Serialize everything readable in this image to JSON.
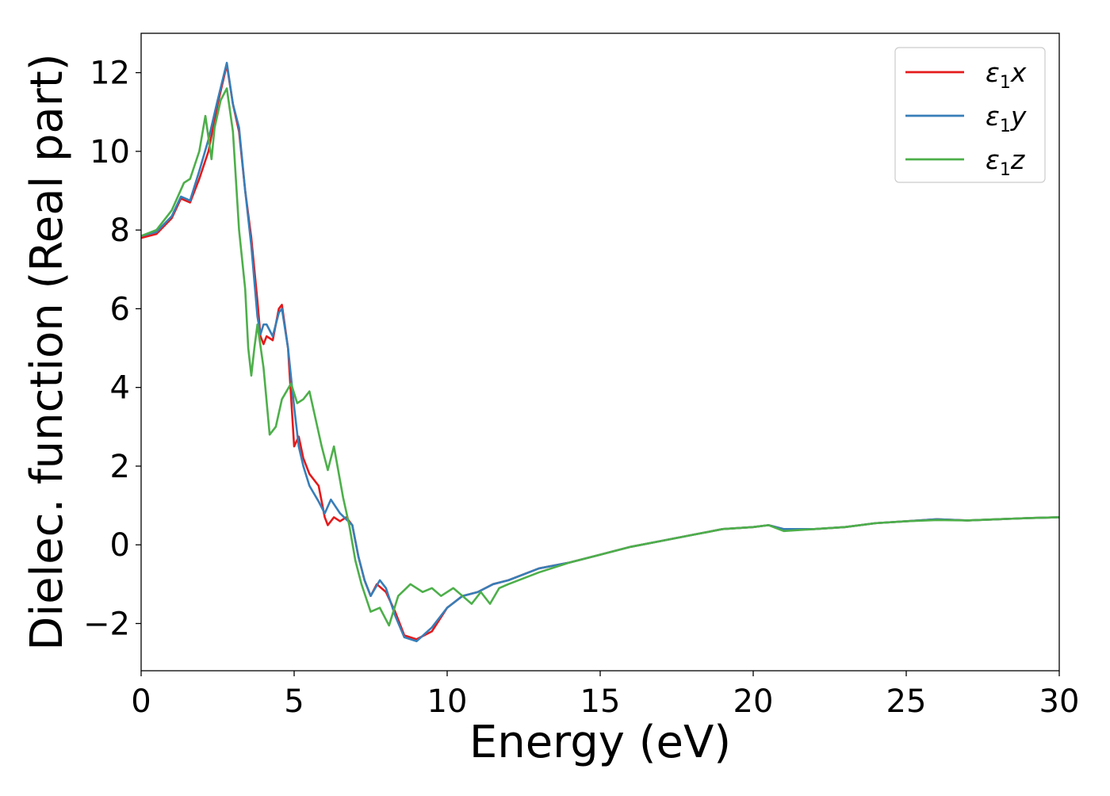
{
  "chart_data": {
    "type": "line",
    "title": "",
    "xlabel": "Energy (eV)",
    "ylabel": "Dielec. function (Real part)",
    "xlim": [
      0,
      30
    ],
    "ylim": [
      -3.2,
      13.0
    ],
    "x_ticks": [
      0,
      5,
      10,
      15,
      20,
      25,
      30
    ],
    "x_tick_labels": [
      "0",
      "5",
      "10",
      "15",
      "20",
      "25",
      "30"
    ],
    "y_ticks": [
      -2,
      0,
      2,
      4,
      6,
      8,
      10,
      12
    ],
    "y_tick_labels": [
      "−2",
      "0",
      "2",
      "4",
      "6",
      "8",
      "10",
      "12"
    ],
    "grid": false,
    "legend_position": "top-right",
    "series": [
      {
        "name": "ε₁x",
        "legend_base": "ε",
        "legend_sub": "1",
        "legend_var": "x",
        "color": "#e41a1c",
        "points": [
          [
            0,
            7.8
          ],
          [
            0.5,
            7.9
          ],
          [
            1.0,
            8.3
          ],
          [
            1.3,
            8.8
          ],
          [
            1.6,
            8.7
          ],
          [
            1.9,
            9.3
          ],
          [
            2.2,
            10.0
          ],
          [
            2.5,
            11.2
          ],
          [
            2.8,
            12.2
          ],
          [
            3.0,
            11.2
          ],
          [
            3.2,
            10.5
          ],
          [
            3.4,
            9.0
          ],
          [
            3.6,
            7.8
          ],
          [
            3.8,
            6.2
          ],
          [
            3.9,
            5.3
          ],
          [
            4.0,
            5.1
          ],
          [
            4.1,
            5.3
          ],
          [
            4.3,
            5.2
          ],
          [
            4.5,
            6.0
          ],
          [
            4.6,
            6.1
          ],
          [
            4.8,
            5.0
          ],
          [
            5.0,
            2.5
          ],
          [
            5.15,
            2.75
          ],
          [
            5.3,
            2.2
          ],
          [
            5.5,
            1.8
          ],
          [
            5.8,
            1.5
          ],
          [
            6.0,
            0.7
          ],
          [
            6.1,
            0.5
          ],
          [
            6.3,
            0.7
          ],
          [
            6.5,
            0.6
          ],
          [
            6.7,
            0.7
          ],
          [
            6.9,
            0.5
          ],
          [
            7.1,
            -0.3
          ],
          [
            7.3,
            -0.9
          ],
          [
            7.5,
            -1.3
          ],
          [
            7.7,
            -1.0
          ],
          [
            8.0,
            -1.2
          ],
          [
            8.3,
            -1.7
          ],
          [
            8.6,
            -2.3
          ],
          [
            9.0,
            -2.4
          ],
          [
            9.5,
            -2.2
          ],
          [
            10.0,
            -1.6
          ],
          [
            10.5,
            -1.3
          ],
          [
            11.0,
            -1.2
          ],
          [
            11.5,
            -1.0
          ],
          [
            12.0,
            -0.9
          ],
          [
            13.0,
            -0.6
          ],
          [
            14.0,
            -0.45
          ],
          [
            15.0,
            -0.25
          ],
          [
            16.0,
            -0.05
          ],
          [
            17.0,
            0.1
          ],
          [
            18.0,
            0.25
          ],
          [
            19.0,
            0.4
          ],
          [
            20.0,
            0.45
          ],
          [
            20.5,
            0.5
          ],
          [
            21.0,
            0.4
          ],
          [
            22.0,
            0.4
          ],
          [
            23.0,
            0.45
          ],
          [
            24.0,
            0.55
          ],
          [
            25.0,
            0.6
          ],
          [
            26.0,
            0.65
          ],
          [
            27.0,
            0.62
          ],
          [
            28.0,
            0.65
          ],
          [
            29.0,
            0.68
          ],
          [
            30.0,
            0.7
          ]
        ]
      },
      {
        "name": "ε₁y",
        "legend_base": "ε",
        "legend_sub": "1",
        "legend_var": "y",
        "color": "#377eb8",
        "points": [
          [
            0,
            7.85
          ],
          [
            0.5,
            7.95
          ],
          [
            1.0,
            8.35
          ],
          [
            1.3,
            8.85
          ],
          [
            1.6,
            8.75
          ],
          [
            1.9,
            9.5
          ],
          [
            2.2,
            10.3
          ],
          [
            2.5,
            11.3
          ],
          [
            2.8,
            12.25
          ],
          [
            3.0,
            11.2
          ],
          [
            3.2,
            10.6
          ],
          [
            3.4,
            9.0
          ],
          [
            3.6,
            7.6
          ],
          [
            3.8,
            5.8
          ],
          [
            3.9,
            5.35
          ],
          [
            4.0,
            5.6
          ],
          [
            4.1,
            5.6
          ],
          [
            4.3,
            5.3
          ],
          [
            4.5,
            5.9
          ],
          [
            4.6,
            6.0
          ],
          [
            4.8,
            5.0
          ],
          [
            5.0,
            3.5
          ],
          [
            5.15,
            2.5
          ],
          [
            5.3,
            2.0
          ],
          [
            5.5,
            1.5
          ],
          [
            5.8,
            1.1
          ],
          [
            6.0,
            0.8
          ],
          [
            6.2,
            1.15
          ],
          [
            6.5,
            0.8
          ],
          [
            6.7,
            0.65
          ],
          [
            6.9,
            0.5
          ],
          [
            7.1,
            -0.3
          ],
          [
            7.3,
            -0.9
          ],
          [
            7.5,
            -1.3
          ],
          [
            7.8,
            -0.9
          ],
          [
            8.0,
            -1.1
          ],
          [
            8.3,
            -1.8
          ],
          [
            8.6,
            -2.35
          ],
          [
            9.0,
            -2.45
          ],
          [
            9.5,
            -2.1
          ],
          [
            10.0,
            -1.6
          ],
          [
            10.5,
            -1.3
          ],
          [
            11.0,
            -1.2
          ],
          [
            11.5,
            -1.0
          ],
          [
            12.0,
            -0.9
          ],
          [
            13.0,
            -0.6
          ],
          [
            14.0,
            -0.45
          ],
          [
            15.0,
            -0.25
          ],
          [
            16.0,
            -0.05
          ],
          [
            17.0,
            0.1
          ],
          [
            18.0,
            0.25
          ],
          [
            19.0,
            0.4
          ],
          [
            20.0,
            0.45
          ],
          [
            20.5,
            0.5
          ],
          [
            21.0,
            0.4
          ],
          [
            22.0,
            0.4
          ],
          [
            23.0,
            0.45
          ],
          [
            24.0,
            0.55
          ],
          [
            25.0,
            0.6
          ],
          [
            26.0,
            0.65
          ],
          [
            27.0,
            0.62
          ],
          [
            28.0,
            0.65
          ],
          [
            29.0,
            0.68
          ],
          [
            30.0,
            0.7
          ]
        ]
      },
      {
        "name": "ε₁z",
        "legend_base": "ε",
        "legend_sub": "1",
        "legend_var": "z",
        "color": "#4daf4a",
        "points": [
          [
            0,
            7.85
          ],
          [
            0.5,
            8.0
          ],
          [
            1.0,
            8.5
          ],
          [
            1.4,
            9.2
          ],
          [
            1.6,
            9.3
          ],
          [
            1.9,
            10.0
          ],
          [
            2.1,
            10.9
          ],
          [
            2.3,
            9.8
          ],
          [
            2.4,
            10.6
          ],
          [
            2.6,
            11.3
          ],
          [
            2.8,
            11.6
          ],
          [
            3.0,
            10.5
          ],
          [
            3.2,
            8.0
          ],
          [
            3.4,
            6.5
          ],
          [
            3.5,
            5.0
          ],
          [
            3.6,
            4.3
          ],
          [
            3.7,
            5.0
          ],
          [
            3.8,
            5.6
          ],
          [
            4.0,
            4.5
          ],
          [
            4.2,
            2.8
          ],
          [
            4.4,
            3.0
          ],
          [
            4.6,
            3.7
          ],
          [
            4.9,
            4.1
          ],
          [
            5.1,
            3.6
          ],
          [
            5.3,
            3.7
          ],
          [
            5.5,
            3.9
          ],
          [
            5.7,
            3.2
          ],
          [
            5.9,
            2.5
          ],
          [
            6.1,
            1.9
          ],
          [
            6.3,
            2.5
          ],
          [
            6.6,
            1.2
          ],
          [
            6.8,
            0.5
          ],
          [
            7.0,
            -0.4
          ],
          [
            7.2,
            -1.0
          ],
          [
            7.5,
            -1.7
          ],
          [
            7.8,
            -1.6
          ],
          [
            8.1,
            -2.05
          ],
          [
            8.4,
            -1.3
          ],
          [
            8.8,
            -1.0
          ],
          [
            9.2,
            -1.2
          ],
          [
            9.5,
            -1.1
          ],
          [
            9.8,
            -1.3
          ],
          [
            10.2,
            -1.1
          ],
          [
            10.5,
            -1.3
          ],
          [
            10.8,
            -1.5
          ],
          [
            11.1,
            -1.2
          ],
          [
            11.4,
            -1.5
          ],
          [
            11.7,
            -1.1
          ],
          [
            12.0,
            -1.0
          ],
          [
            13.0,
            -0.7
          ],
          [
            14.0,
            -0.45
          ],
          [
            15.0,
            -0.25
          ],
          [
            16.0,
            -0.05
          ],
          [
            17.0,
            0.1
          ],
          [
            18.0,
            0.25
          ],
          [
            19.0,
            0.4
          ],
          [
            20.0,
            0.45
          ],
          [
            20.5,
            0.5
          ],
          [
            21.0,
            0.35
          ],
          [
            22.0,
            0.4
          ],
          [
            23.0,
            0.45
          ],
          [
            24.0,
            0.55
          ],
          [
            25.0,
            0.6
          ],
          [
            26.0,
            0.63
          ],
          [
            27.0,
            0.62
          ],
          [
            28.0,
            0.65
          ],
          [
            29.0,
            0.68
          ],
          [
            30.0,
            0.7
          ]
        ]
      }
    ]
  }
}
